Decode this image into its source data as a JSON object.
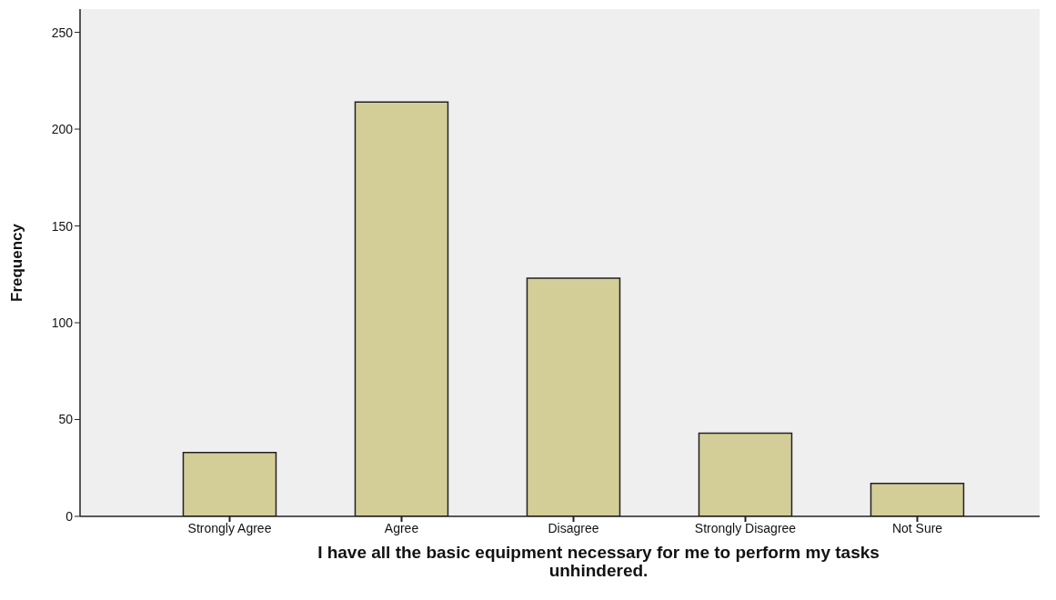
{
  "chart_data": {
    "type": "bar",
    "xlabel": "I have all the basic equipment necessary for me to perform my tasks unhindered.",
    "ylabel": "Frequency",
    "categories": [
      "Strongly Agree",
      "Agree",
      "Disagree",
      "Strongly Disagree",
      "Not Sure"
    ],
    "values": [
      33,
      214,
      123,
      43,
      17
    ],
    "color": "#d3ce97",
    "ylim": [
      0,
      262
    ],
    "yticks": [
      0,
      50,
      100,
      150,
      200,
      250
    ]
  }
}
